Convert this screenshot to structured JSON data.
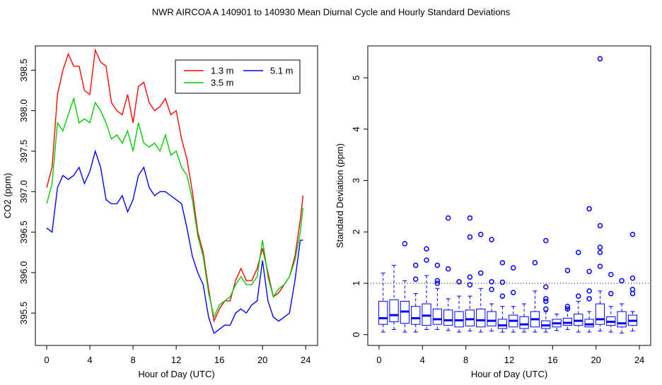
{
  "title": "NWR   AIRCOA A   140901 to 140930   Mean Diurnal Cycle and Hourly Standard Deviations",
  "chart_data": [
    {
      "type": "line",
      "xlabel": "Hour of Day (UTC)",
      "ylabel": "CO2 (ppm)",
      "xlim": [
        -1.05,
        25.1
      ],
      "ylim": [
        395.1,
        398.8
      ],
      "xticks": [
        0,
        4,
        8,
        12,
        16,
        20,
        24
      ],
      "yticks": [
        395.5,
        {
          "value": 396,
          "label": "396.0"
        },
        396.5,
        {
          "value": 397,
          "label": "397.0"
        },
        397.5,
        {
          "value": 398,
          "label": "398.0"
        },
        398.5
      ],
      "legend": "top-right",
      "x": [
        0,
        0.5,
        1,
        1.5,
        2,
        2.5,
        3,
        3.5,
        4,
        4.5,
        5,
        5.5,
        6,
        6.5,
        7,
        7.5,
        8,
        8.5,
        9,
        9.5,
        10,
        10.5,
        11,
        11.5,
        12,
        12.5,
        13,
        13.5,
        14,
        14.5,
        15,
        15.5,
        16,
        16.5,
        17,
        17.5,
        18,
        18.5,
        19,
        19.5,
        20,
        20.5,
        21,
        21.5,
        22,
        22.5,
        23,
        23.5,
        23.75
      ],
      "series": [
        {
          "name": "1.3 m",
          "color": "#ff0000",
          "values": [
            397.05,
            397.3,
            398.2,
            398.5,
            398.7,
            398.55,
            398.55,
            398.25,
            398.2,
            398.75,
            398.6,
            398.55,
            398.1,
            398.0,
            397.95,
            398.2,
            397.85,
            398.3,
            398.35,
            398.1,
            398.0,
            398.05,
            398.15,
            397.95,
            398.0,
            397.65,
            397.4,
            397.0,
            396.5,
            396.25,
            395.8,
            395.4,
            395.55,
            395.65,
            395.65,
            395.9,
            396.05,
            395.9,
            395.9,
            396.05,
            396.3,
            396.0,
            395.7,
            395.75,
            395.85,
            395.95,
            396.2,
            396.65,
            396.95
          ]
        },
        {
          "name": "5.1 m",
          "color": "#0000ff",
          "values": [
            396.55,
            396.5,
            397.05,
            397.2,
            397.15,
            397.2,
            397.3,
            397.1,
            397.25,
            397.5,
            397.3,
            396.9,
            396.85,
            396.85,
            396.95,
            396.75,
            396.9,
            397.2,
            397.3,
            397.05,
            396.95,
            397.0,
            397.0,
            396.95,
            396.9,
            396.85,
            396.55,
            396.2,
            396.0,
            395.85,
            395.45,
            395.25,
            395.3,
            395.35,
            395.35,
            395.5,
            395.55,
            395.5,
            395.6,
            395.65,
            396.15,
            395.65,
            395.45,
            395.4,
            395.45,
            395.5,
            395.9,
            396.4,
            396.4
          ]
        },
        {
          "name": "3.5 m",
          "color": "#00cc00",
          "values": [
            396.85,
            397.1,
            397.85,
            397.75,
            397.95,
            398.15,
            397.85,
            397.9,
            397.85,
            398.1,
            398.0,
            397.85,
            397.65,
            397.7,
            397.6,
            397.75,
            397.5,
            397.85,
            397.6,
            397.55,
            397.6,
            397.5,
            397.7,
            397.45,
            397.5,
            397.3,
            397.2,
            396.9,
            396.45,
            396.2,
            395.75,
            395.45,
            395.6,
            395.65,
            395.7,
            395.85,
            395.95,
            395.85,
            395.85,
            395.95,
            396.4,
            395.95,
            395.7,
            395.8,
            395.85,
            395.95,
            396.15,
            396.5,
            396.8
          ]
        }
      ]
    },
    {
      "type": "box",
      "xlabel": "Hour of Day (UTC)",
      "ylabel": "Standard Deviation (ppm)",
      "xlim": [
        -1.04,
        25.04
      ],
      "ylim": [
        -0.21,
        5.62
      ],
      "xticks": [
        0,
        4,
        8,
        12,
        16,
        20,
        24
      ],
      "yticks": [
        0,
        1,
        2,
        3,
        4,
        5
      ],
      "hline": 1,
      "color": "#0000ff",
      "x": [
        0.375,
        1.375,
        2.375,
        3.375,
        4.375,
        5.375,
        6.375,
        7.375,
        8.375,
        9.375,
        10.375,
        11.375,
        12.375,
        13.375,
        14.375,
        15.375,
        16.375,
        17.375,
        18.375,
        19.375,
        20.375,
        21.375,
        22.375,
        23.375
      ],
      "boxes": [
        {
          "low": 0.05,
          "q1": 0.2,
          "median": 0.32,
          "q3": 0.65,
          "high": 1.2,
          "outliers": []
        },
        {
          "low": 0.1,
          "q1": 0.25,
          "median": 0.38,
          "q3": 0.68,
          "high": 1.35,
          "outliers": []
        },
        {
          "low": 0.05,
          "q1": 0.22,
          "median": 0.45,
          "q3": 0.65,
          "high": 1.05,
          "outliers": [
            1.77
          ]
        },
        {
          "low": 0.05,
          "q1": 0.2,
          "median": 0.32,
          "q3": 0.55,
          "high": 0.8,
          "outliers": [
            1.08,
            1.35
          ]
        },
        {
          "low": 0.1,
          "q1": 0.18,
          "median": 0.37,
          "q3": 0.6,
          "high": 1.15,
          "outliers": [
            1.45,
            1.67
          ]
        },
        {
          "low": 0.1,
          "q1": 0.2,
          "median": 0.3,
          "q3": 0.5,
          "high": 0.9,
          "outliers": [
            1.0,
            1.05,
            1.35
          ]
        },
        {
          "low": 0.08,
          "q1": 0.18,
          "median": 0.28,
          "q3": 0.48,
          "high": 0.7,
          "outliers": [
            1.28,
            2.27
          ]
        },
        {
          "low": 0.05,
          "q1": 0.15,
          "median": 0.28,
          "q3": 0.45,
          "high": 0.75,
          "outliers": [
            1.03
          ]
        },
        {
          "low": 0.07,
          "q1": 0.17,
          "median": 0.3,
          "q3": 0.48,
          "high": 0.75,
          "outliers": [
            0.97,
            1.12,
            1.9,
            2.27
          ]
        },
        {
          "low": 0.05,
          "q1": 0.15,
          "median": 0.28,
          "q3": 0.5,
          "high": 0.9,
          "outliers": [
            1.2,
            1.95
          ]
        },
        {
          "low": 0.07,
          "q1": 0.17,
          "median": 0.27,
          "q3": 0.45,
          "high": 0.6,
          "outliers": [
            0.88,
            1.03,
            1.85
          ]
        },
        {
          "low": 0.05,
          "q1": 0.12,
          "median": 0.18,
          "q3": 0.3,
          "high": 0.55,
          "outliers": [
            0.75,
            1.02,
            1.4
          ]
        },
        {
          "low": 0.05,
          "q1": 0.15,
          "median": 0.27,
          "q3": 0.38,
          "high": 0.55,
          "outliers": [
            0.82,
            1.3
          ]
        },
        {
          "low": 0.05,
          "q1": 0.12,
          "median": 0.2,
          "q3": 0.35,
          "high": 0.6,
          "outliers": []
        },
        {
          "low": 0.05,
          "q1": 0.15,
          "median": 0.3,
          "q3": 0.45,
          "high": 0.85,
          "outliers": [
            1.4
          ]
        },
        {
          "low": 0.05,
          "q1": 0.12,
          "median": 0.18,
          "q3": 0.27,
          "high": 0.45,
          "outliers": [
            0.5,
            0.65,
            0.7,
            0.93,
            1.83
          ]
        },
        {
          "low": 0.08,
          "q1": 0.15,
          "median": 0.22,
          "q3": 0.3,
          "high": 0.4,
          "outliers": []
        },
        {
          "low": 0.1,
          "q1": 0.18,
          "median": 0.23,
          "q3": 0.32,
          "high": 0.5,
          "outliers": [
            0.5,
            0.55,
            1.25
          ]
        },
        {
          "low": 0.05,
          "q1": 0.18,
          "median": 0.27,
          "q3": 0.4,
          "high": 0.65,
          "outliers": [
            0.75,
            1.6
          ]
        },
        {
          "low": 0.05,
          "q1": 0.15,
          "median": 0.2,
          "q3": 0.3,
          "high": 0.45,
          "outliers": [
            0.7,
            0.85,
            1.23,
            2.45
          ]
        },
        {
          "low": 0.07,
          "q1": 0.2,
          "median": 0.3,
          "q3": 0.6,
          "high": 0.85,
          "outliers": [
            1.33,
            1.6,
            1.7,
            2.12,
            5.37
          ]
        },
        {
          "low": 0.05,
          "q1": 0.18,
          "median": 0.25,
          "q3": 0.35,
          "high": 0.55,
          "outliers": [
            0.8,
            1.17
          ]
        },
        {
          "low": 0.03,
          "q1": 0.15,
          "median": 0.22,
          "q3": 0.45,
          "high": 0.6,
          "outliers": [
            1.05
          ]
        },
        {
          "low": 0.07,
          "q1": 0.18,
          "median": 0.27,
          "q3": 0.38,
          "high": 0.45,
          "outliers": [
            0.8,
            0.88,
            1.1,
            1.95
          ]
        }
      ]
    }
  ]
}
